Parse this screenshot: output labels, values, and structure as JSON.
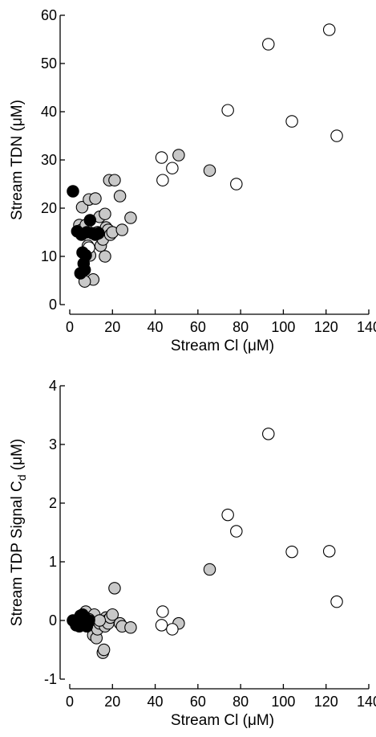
{
  "chart_data": [
    {
      "type": "scatter",
      "xlabel": "Stream Cl (μM)",
      "ylabel": "Stream TDN (μM)",
      "xlim": [
        0,
        140
      ],
      "ylim": [
        0,
        60
      ],
      "xticks": [
        0,
        20,
        40,
        60,
        80,
        100,
        120,
        140
      ],
      "yticks": [
        0,
        10,
        20,
        30,
        40,
        50,
        60
      ],
      "grid": false,
      "series": [
        {
          "fill": "#000000",
          "points": [
            [
              1.5,
              23.5
            ],
            [
              3.5,
              15.2
            ],
            [
              5.5,
              14.5
            ],
            [
              6,
              10.8
            ],
            [
              6.5,
              8.5
            ],
            [
              5,
              6.5
            ],
            [
              7.5,
              10.2
            ],
            [
              8,
              15
            ],
            [
              9.5,
              17.5
            ],
            [
              10.5,
              14.8
            ],
            [
              12,
              14.5
            ],
            [
              13.5,
              14.8
            ],
            [
              7,
              7.2
            ]
          ]
        },
        {
          "fill": "#c8c8c8",
          "points": [
            [
              4.5,
              16.5
            ],
            [
              5.5,
              15.5
            ],
            [
              5.8,
              20.2
            ],
            [
              7.5,
              16.5
            ],
            [
              8.5,
              12.2
            ],
            [
              9,
              21.8
            ],
            [
              9.5,
              10.2
            ],
            [
              11,
              5.2
            ],
            [
              12,
              22
            ],
            [
              13,
              15
            ],
            [
              14,
              18.2
            ],
            [
              14.5,
              12.2
            ],
            [
              15.5,
              13.5
            ],
            [
              16.5,
              18.8
            ],
            [
              17,
              16
            ],
            [
              16.5,
              10
            ],
            [
              18,
              15.5
            ],
            [
              18.5,
              25.8
            ],
            [
              19,
              14.5
            ],
            [
              20,
              15
            ],
            [
              21,
              25.8
            ],
            [
              23.5,
              22.5
            ],
            [
              24.5,
              15.5
            ],
            [
              28.5,
              18
            ],
            [
              51,
              31
            ],
            [
              65.5,
              27.8
            ],
            [
              7,
              4.8
            ]
          ]
        },
        {
          "fill": "#ffffff",
          "points": [
            [
              9,
              11.8
            ],
            [
              43,
              30.5
            ],
            [
              43.5,
              25.8
            ],
            [
              48,
              28.3
            ],
            [
              74,
              40.3
            ],
            [
              78,
              25
            ],
            [
              93,
              54
            ],
            [
              104,
              38
            ],
            [
              121.5,
              57
            ],
            [
              125,
              35
            ]
          ]
        }
      ]
    },
    {
      "type": "scatter",
      "xlabel": "Stream Cl (μM)",
      "ylabel": "Stream TDP Signal C",
      "ylabel_sub": "d",
      "ylabel_unit": " (μM)",
      "xlim": [
        0,
        140
      ],
      "ylim": [
        -1,
        4
      ],
      "xticks": [
        0,
        20,
        40,
        60,
        80,
        100,
        120,
        140
      ],
      "yticks": [
        -1,
        0,
        1,
        2,
        3,
        4
      ],
      "grid": false,
      "series": [
        {
          "fill": "#000000",
          "points": [
            [
              1.5,
              0
            ],
            [
              3.5,
              -0.05
            ],
            [
              4.5,
              -0.1
            ],
            [
              5.5,
              0
            ],
            [
              6,
              0.1
            ],
            [
              6.5,
              -0.05
            ],
            [
              7,
              0.05
            ],
            [
              8,
              -0.1
            ],
            [
              9,
              0
            ],
            [
              3,
              -0.08
            ],
            [
              5,
              0.08
            ]
          ]
        },
        {
          "fill": "#c8c8c8",
          "points": [
            [
              7.5,
              0.15
            ],
            [
              9,
              -0.08
            ],
            [
              10,
              0.05
            ],
            [
              11,
              -0.25
            ],
            [
              11.5,
              0.1
            ],
            [
              12.5,
              -0.3
            ],
            [
              13,
              -0.15
            ],
            [
              14,
              -0.05
            ],
            [
              15.5,
              -0.55
            ],
            [
              16,
              -0.5
            ],
            [
              16.5,
              -0.1
            ],
            [
              17,
              0.05
            ],
            [
              17.5,
              0
            ],
            [
              18,
              -0.05
            ],
            [
              19,
              0.05
            ],
            [
              20,
              0.1
            ],
            [
              21,
              0.55
            ],
            [
              23.5,
              -0.05
            ],
            [
              24.5,
              -0.1
            ],
            [
              28.5,
              -0.12
            ],
            [
              51,
              -0.05
            ],
            [
              65.5,
              0.87
            ],
            [
              14,
              0
            ]
          ]
        },
        {
          "fill": "#ffffff",
          "points": [
            [
              9,
              0.02
            ],
            [
              43,
              -0.08
            ],
            [
              43.5,
              0.15
            ],
            [
              48,
              -0.15
            ],
            [
              74,
              1.8
            ],
            [
              78,
              1.52
            ],
            [
              93,
              3.18
            ],
            [
              104,
              1.17
            ],
            [
              121.5,
              1.18
            ],
            [
              125,
              0.32
            ]
          ]
        }
      ]
    }
  ]
}
